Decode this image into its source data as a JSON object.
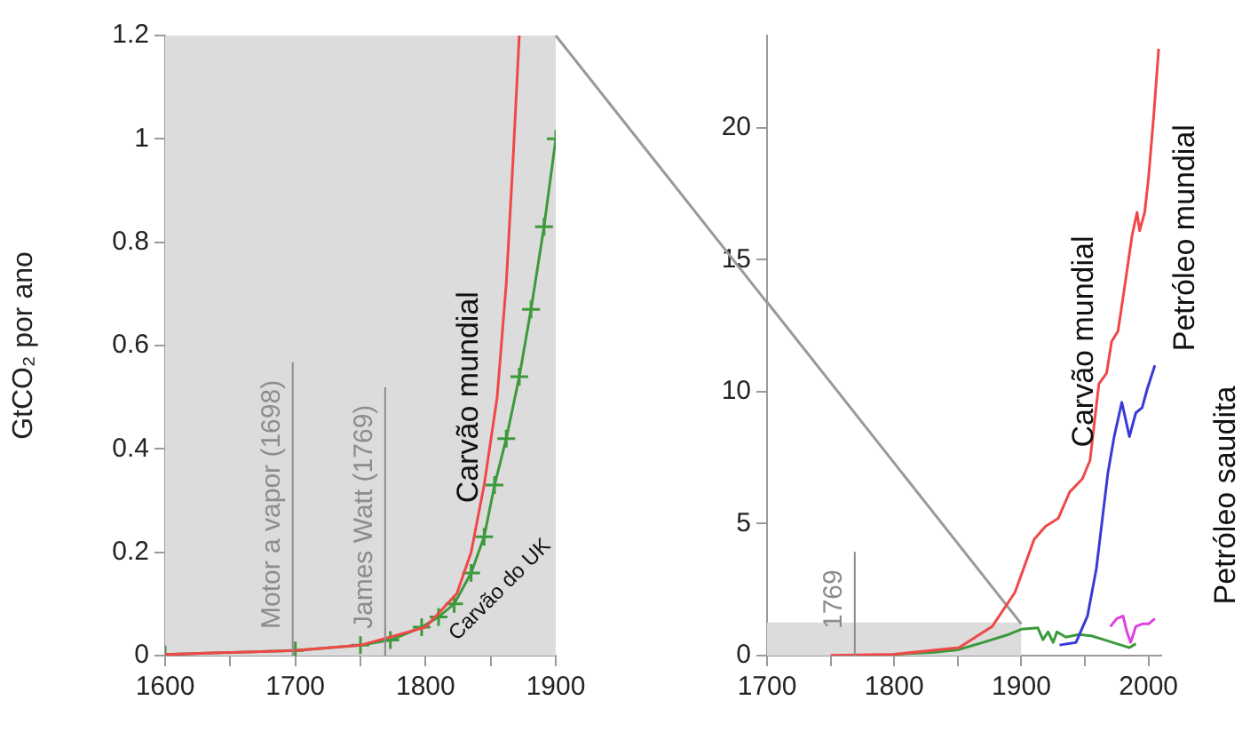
{
  "chart_data": [
    {
      "type": "line",
      "ylabel": "GtCO₂ por ano",
      "xlim": [
        1600,
        1900
      ],
      "xticks": [
        1600,
        {
          "value": 1650,
          "label": null
        },
        1700,
        {
          "value": 1750,
          "label": null
        },
        1800,
        {
          "value": 1850,
          "label": null
        },
        1900
      ],
      "ylim": [
        0,
        1.2
      ],
      "yticks": [
        0,
        0.2,
        0.4,
        0.6,
        0.8,
        1,
        1.2
      ],
      "grid": false,
      "legend": false,
      "marker": "none",
      "series": [
        {
          "name": "Carvão mundial",
          "color": "#f04848",
          "x": [
            1600,
            1700,
            1750,
            1800,
            1824,
            1835,
            1845,
            1855,
            1862,
            1867,
            1872
          ],
          "values": [
            0.002,
            0.01,
            0.02,
            0.055,
            0.12,
            0.2,
            0.33,
            0.5,
            0.72,
            0.95,
            1.2
          ]
        },
        {
          "name": "Carvão do UK",
          "color": "#3c9a3c",
          "marker": "cross",
          "x": [
            1600,
            1700,
            1750,
            1773,
            1797,
            1810,
            1822,
            1835,
            1845,
            1853,
            1862,
            1872,
            1881,
            1891,
            1900
          ],
          "values": [
            0.002,
            0.01,
            0.02,
            0.03,
            0.055,
            0.075,
            0.1,
            0.16,
            0.23,
            0.33,
            0.42,
            0.54,
            0.67,
            0.83,
            1.0
          ]
        }
      ],
      "ref_lines": [
        {
          "axis": "x",
          "value": 1698,
          "label": "Motor a vapor (1698)",
          "color": "#8c8c8c"
        },
        {
          "axis": "x",
          "value": 1769,
          "label": "James Watt (1769)",
          "color": "#8c8c8c"
        }
      ],
      "bands": [
        {
          "axis": "x",
          "from": 1600,
          "to": 1900,
          "color": "#dcdcdc"
        }
      ]
    },
    {
      "type": "line",
      "xlim": [
        1700,
        2010
      ],
      "xticks": [
        1700,
        {
          "value": 1750,
          "label": null
        },
        1800,
        {
          "value": 1850,
          "label": null
        },
        1900,
        {
          "value": 1950,
          "label": null
        },
        2000
      ],
      "ylim": [
        0,
        23.5
      ],
      "yticks": [
        0,
        5,
        10,
        15,
        20
      ],
      "grid": false,
      "legend": false,
      "marker": "none",
      "series": [
        {
          "name": "Carvão mundial",
          "color": "#f04848",
          "x": [
            1750,
            1800,
            1851,
            1877,
            1895,
            1910,
            1919,
            1929,
            1938,
            1948,
            1954,
            1961,
            1967,
            1971,
            1976,
            1981,
            1987,
            1991,
            1993,
            1997,
            2000,
            2004,
            2008
          ],
          "values": [
            0.01,
            0.05,
            0.3,
            1.1,
            2.4,
            4.4,
            4.9,
            5.2,
            6.2,
            6.7,
            7.4,
            10.3,
            10.7,
            11.9,
            12.3,
            13.9,
            15.9,
            16.8,
            16.1,
            16.8,
            18.1,
            20.4,
            23
          ]
        },
        {
          "name": "Petróleo mundial",
          "color": "#3a3ad8",
          "x": [
            1930,
            1943,
            1952,
            1959,
            1964,
            1968,
            1973,
            1979,
            1985,
            1990,
            1995,
            1999,
            2005
          ],
          "values": [
            0.4,
            0.5,
            1.5,
            3.3,
            5.3,
            6.9,
            8.3,
            9.6,
            8.3,
            9.2,
            9.4,
            10.1,
            11.0
          ]
        },
        {
          "color": "#3c9a3c",
          "x": [
            1800,
            1830,
            1850,
            1870,
            1890,
            1900,
            1913,
            1917,
            1921,
            1925,
            1928,
            1935,
            1945,
            1955,
            1965,
            1975,
            1985,
            1990
          ],
          "values": [
            0.05,
            0.12,
            0.22,
            0.5,
            0.8,
            1.0,
            1.05,
            0.6,
            0.9,
            0.5,
            0.9,
            0.7,
            0.8,
            0.75,
            0.6,
            0.45,
            0.3,
            0.45
          ]
        },
        {
          "name": "Petróleo saudita",
          "color": "#e040e0",
          "x": [
            1970,
            1975,
            1980,
            1983,
            1986,
            1990,
            1995,
            2000,
            2005
          ],
          "values": [
            1.1,
            1.4,
            1.5,
            0.9,
            0.5,
            1.1,
            1.2,
            1.2,
            1.4
          ]
        },
        {
          "type": "line",
          "color": "#9a9a9a",
          "x": [
            1700,
            1900
          ],
          "values": [
            13.4,
            1.2
          ]
        },
        {
          "type": "area",
          "color": "#dcdcdc",
          "x": [
            1700,
            1900
          ],
          "values": [
            1.2,
            1.2
          ]
        }
      ],
      "ref_lines": [
        {
          "axis": "x",
          "value": 1769,
          "label": "1769",
          "color": "#8c8c8c"
        }
      ]
    }
  ]
}
